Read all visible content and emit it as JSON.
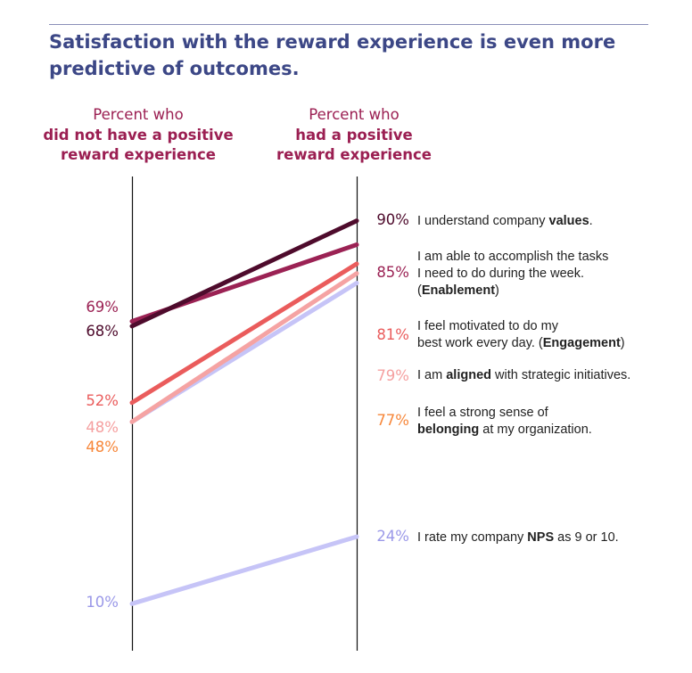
{
  "title": "Satisfaction with the reward experience is even more predictive of outcomes.",
  "chart_data": {
    "type": "slope",
    "columns": [
      {
        "line1": "Percent who",
        "line2": "did not have a positive",
        "line3": "reward experience"
      },
      {
        "line1": "Percent who",
        "line2": "had a positive",
        "line3": "reward experience"
      }
    ],
    "ylim": [
      0,
      100
    ],
    "series": [
      {
        "label_parts": [
          [
            "I understand company ",
            false
          ],
          [
            "values",
            true
          ],
          [
            ".",
            false
          ]
        ],
        "left": 68,
        "right": 90,
        "left_text": "68%",
        "right_text": "90%",
        "color": "#4e0b2c",
        "line_color": "#4e0b2c"
      },
      {
        "label_parts": [
          [
            "I am able to accomplish the tasks\nI need to do during the week.\n(",
            false
          ],
          [
            "Enablement",
            true
          ],
          [
            ")",
            false
          ]
        ],
        "left": 69,
        "right": 85,
        "left_text": "69%",
        "right_text": "85%",
        "color": "#9b2254",
        "line_color": "#9b2254"
      },
      {
        "label_parts": [
          [
            "I feel motivated to do my\nbest work every day. (",
            false
          ],
          [
            "Engagement",
            true
          ],
          [
            ")",
            false
          ]
        ],
        "left": 52,
        "right": 81,
        "left_text": "52%",
        "right_text": "81%",
        "color": "#ea5c5c",
        "line_color": "#ea5c5c"
      },
      {
        "label_parts": [
          [
            "I am ",
            false
          ],
          [
            "aligned",
            true
          ],
          [
            " with strategic initiatives.",
            false
          ]
        ],
        "left": 48,
        "right": 79,
        "left_text": "48%",
        "right_text": "79%",
        "color": "#f5a0a0",
        "line_color": "#f5a3a3"
      },
      {
        "label_parts": [
          [
            "I feel a strong sense of\n",
            false
          ],
          [
            "belonging",
            true
          ],
          [
            " at my organization.",
            false
          ]
        ],
        "left": 48,
        "right": 77,
        "left_text": "48%",
        "right_text": "77%",
        "color": "#f7873a",
        "line_color": "#c6c4f7"
      },
      {
        "label_parts": [
          [
            "I rate my company ",
            false
          ],
          [
            "NPS",
            true
          ],
          [
            " as 9 or 10.",
            false
          ]
        ],
        "left": 10,
        "right": 24,
        "left_text": "10%",
        "right_text": "24%",
        "color": "#9a98e8",
        "line_color": "#c6c4f7"
      }
    ]
  }
}
